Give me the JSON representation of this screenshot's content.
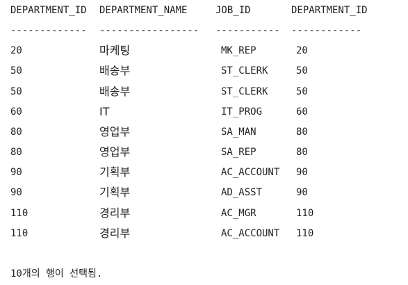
{
  "table": {
    "columns": [
      "DEPARTMENT_ID",
      "DEPARTMENT_NAME",
      "JOB_ID",
      "DEPARTMENT_ID"
    ],
    "separators": [
      "-------------",
      "-----------------",
      "-----------",
      "------------"
    ],
    "rows": [
      [
        "20",
        "마케팅",
        "MK_REP",
        "20"
      ],
      [
        "50",
        "배송부",
        "ST_CLERK",
        "50"
      ],
      [
        "50",
        "배송부",
        "ST_CLERK",
        "50"
      ],
      [
        "60",
        "IT",
        "IT_PROG",
        "60"
      ],
      [
        "80",
        "영업부",
        "SA_MAN",
        "80"
      ],
      [
        "80",
        "영업부",
        "SA_REP",
        "80"
      ],
      [
        "90",
        "기획부",
        "AC_ACCOUNT",
        "90"
      ],
      [
        "90",
        "기획부",
        "AD_ASST",
        "90"
      ],
      [
        "110",
        "경리부",
        "AC_MGR",
        "110"
      ],
      [
        "110",
        "경리부",
        "AC_ACCOUNT",
        "110"
      ]
    ]
  },
  "footer": {
    "status": "10개의 행이 선택됨."
  }
}
